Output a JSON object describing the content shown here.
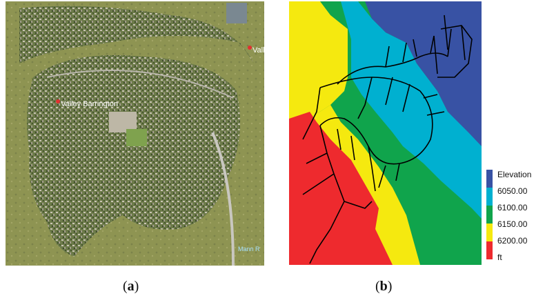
{
  "panel_a": {
    "place_labels": {
      "main": "Valley Barrington",
      "corner": "Valle",
      "bottom": "Mann R"
    },
    "caption_letter": "a"
  },
  "panel_b": {
    "caption_letter": "b",
    "legend": {
      "title": "Elevation",
      "unit": "ft",
      "entries": [
        {
          "label": "6050.00",
          "color": "#3852a4"
        },
        {
          "label": "6100.00",
          "color": "#00b0d0"
        },
        {
          "label": "6150.00",
          "color": "#10a44c"
        },
        {
          "label": "6200.00",
          "color": "#f5e90f"
        },
        {
          "label": "",
          "color": "#ee2a2e"
        }
      ]
    }
  }
}
